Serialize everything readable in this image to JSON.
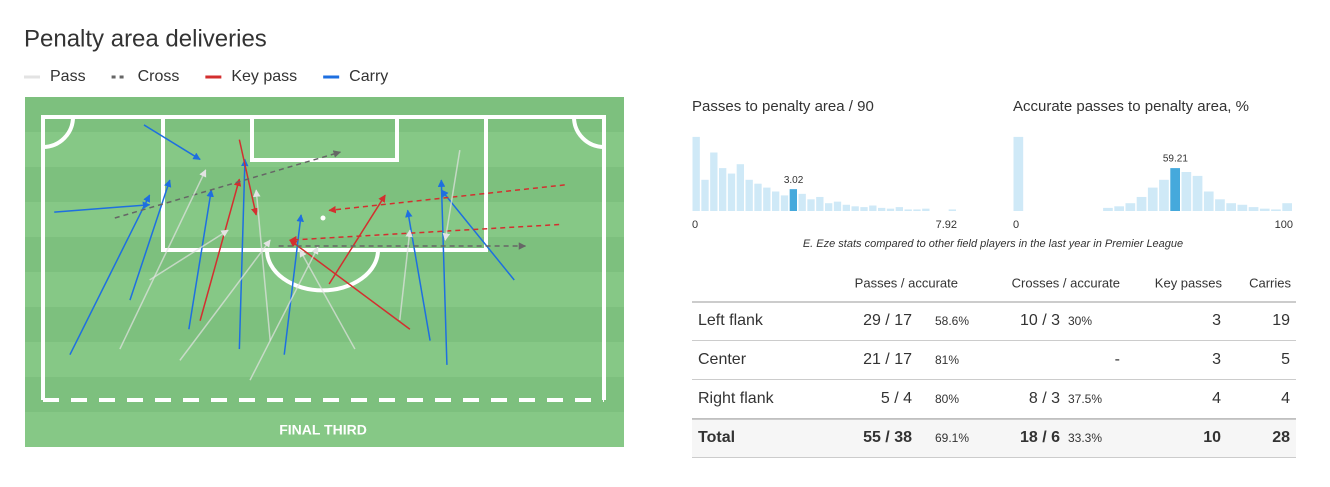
{
  "header": {
    "title": "Penalty area deliveries"
  },
  "legend": [
    {
      "name": "Pass",
      "color": "#e3e3e3",
      "dashed": false
    },
    {
      "name": "Cross",
      "color": "#666666",
      "dashed": true
    },
    {
      "name": "Key pass",
      "color": "#d32f2f",
      "dashed": false
    },
    {
      "name": "Carry",
      "color": "#1e6fe0",
      "dashed": false
    }
  ],
  "pitch": {
    "label": "FINAL THIRD",
    "deliveries": [
      {
        "kind": "Carry",
        "x": [
          4.8,
          19
        ],
        "y": [
          84,
          27.6
        ]
      },
      {
        "kind": "Carry",
        "x": [
          2,
          19
        ],
        "y": [
          33.6,
          31
        ]
      },
      {
        "kind": "Carry",
        "x": [
          18,
          28
        ],
        "y": [
          2.8,
          15
        ]
      },
      {
        "kind": "Carry",
        "x": [
          72,
          71
        ],
        "y": [
          87.6,
          22.3
        ]
      },
      {
        "kind": "Carry",
        "x": [
          84,
          71
        ],
        "y": [
          57.6,
          25.8
        ]
      },
      {
        "kind": "Carry",
        "x": [
          35,
          36
        ],
        "y": [
          82,
          15
        ]
      },
      {
        "kind": "Carry",
        "x": [
          43,
          46
        ],
        "y": [
          84,
          34.6
        ]
      },
      {
        "kind": "Carry",
        "x": [
          26,
          30
        ],
        "y": [
          75,
          25.8
        ]
      },
      {
        "kind": "Carry",
        "x": [
          69,
          65
        ],
        "y": [
          79,
          33
        ]
      },
      {
        "kind": "Carry",
        "x": [
          15.5,
          22.6
        ],
        "y": [
          64.7,
          22.3
        ]
      },
      {
        "kind": "Key pass",
        "x": [
          35,
          38
        ],
        "y": [
          8,
          34.6
        ]
      },
      {
        "kind": "Key pass",
        "x": [
          65.4,
          44
        ],
        "y": [
          75,
          43.5
        ]
      },
      {
        "kind": "Key pass",
        "x": [
          28,
          35
        ],
        "y": [
          72,
          22
        ]
      },
      {
        "kind": "Key pass",
        "x": [
          51,
          61
        ],
        "y": [
          59,
          27.6
        ]
      },
      {
        "kind": "Cross",
        "x": [
          12.8,
          53
        ],
        "y": [
          35.7,
          12.4
        ]
      },
      {
        "kind": "Cross",
        "x": [
          42,
          86
        ],
        "y": [
          45.6,
          45.6
        ]
      },
      {
        "kind": "Key pass",
        "x": [
          93,
          51
        ],
        "y": [
          24,
          33
        ]
      },
      {
        "kind": "Key pass",
        "x": [
          92,
          44
        ],
        "y": [
          38,
          43.5
        ]
      },
      {
        "kind": "Pass",
        "x": [
          13.7,
          29
        ],
        "y": [
          82,
          18.7
        ]
      },
      {
        "kind": "Pass",
        "x": [
          40.5,
          38
        ],
        "y": [
          79,
          25.8
        ]
      },
      {
        "kind": "Pass",
        "x": [
          63.6,
          65.4
        ],
        "y": [
          71.7,
          40
        ]
      },
      {
        "kind": "Pass",
        "x": [
          19,
          33
        ],
        "y": [
          57.6,
          40
        ]
      },
      {
        "kind": "Pass",
        "x": [
          55.6,
          45.8
        ],
        "y": [
          82,
          47
        ]
      },
      {
        "kind": "Pass",
        "x": [
          74.3,
          71.7
        ],
        "y": [
          11.7,
          43.5
        ]
      },
      {
        "kind": "Pass",
        "x": [
          36.9,
          49
        ],
        "y": [
          93,
          46
        ]
      },
      {
        "kind": "Pass",
        "x": [
          24.4,
          40.5
        ],
        "y": [
          86,
          43.5
        ]
      }
    ]
  },
  "chart_data": [
    {
      "type": "histogram",
      "title": "Passes to penalty area / 90",
      "color": "#cfe9f7",
      "highlight_color": "#45a9dc",
      "bins": [
        0,
        0.264,
        0.528,
        0.792,
        1.056,
        1.32,
        1.584,
        1.848,
        2.112,
        2.376,
        2.64,
        2.904,
        3.168,
        3.432,
        3.696,
        3.96,
        4.224,
        4.488,
        4.752,
        5.016,
        5.28,
        5.544,
        5.808,
        6.072,
        6.336,
        6.6,
        6.864,
        7.128,
        7.392,
        7.656,
        7.92
      ],
      "values": [
        95,
        40,
        75,
        55,
        48,
        60,
        40,
        35,
        30,
        25,
        20,
        28,
        22,
        15,
        18,
        10,
        12,
        8,
        6,
        5,
        7,
        4,
        3,
        5,
        2,
        2,
        3,
        0,
        0,
        2
      ],
      "ylim": [
        0,
        100
      ],
      "xlim": [
        0,
        7.92
      ],
      "xticks": [
        0,
        7.92
      ],
      "marker": 3.02
    },
    {
      "type": "histogram",
      "title": "Accurate passes to penalty area, %",
      "color": "#cfe9f7",
      "highlight_color": "#45a9dc",
      "bins": [
        0,
        4,
        8,
        12,
        16,
        20,
        24,
        28,
        32,
        36,
        40,
        44,
        48,
        52,
        56,
        60,
        64,
        68,
        72,
        76,
        80,
        84,
        88,
        92,
        96,
        100
      ],
      "values": [
        95,
        0,
        0,
        0,
        0,
        0,
        0,
        0,
        4,
        6,
        10,
        18,
        30,
        40,
        55,
        50,
        45,
        25,
        15,
        10,
        8,
        5,
        3,
        2,
        10
      ],
      "ylim": [
        0,
        100
      ],
      "xlim": [
        0,
        100
      ],
      "xticks": [
        0,
        100
      ],
      "marker": 59.21
    }
  ],
  "caption": "E. Eze stats compared to other field players in the last year in Premier League",
  "table": {
    "columns": [
      "Passes / accurate",
      "Crosses / accurate",
      "Key passes",
      "Carries"
    ],
    "rows": [
      {
        "label": "Left flank",
        "passes": "29 / 17",
        "passes_pct": "58.6%",
        "crosses": "10 / 3",
        "crosses_pct": "30%",
        "key_passes": "3",
        "carries": "19"
      },
      {
        "label": "Center",
        "passes": "21 / 17",
        "passes_pct": "81%",
        "crosses": "-",
        "key_passes": "3",
        "carries": "5"
      },
      {
        "label": "Right flank",
        "passes": "5 / 4",
        "passes_pct": "80%",
        "crosses": "8 / 3",
        "crosses_pct": "37.5%",
        "key_passes": "4",
        "carries": "4"
      },
      {
        "label": "Total",
        "passes": "55 / 38",
        "passes_pct": "69.1%",
        "crosses": "18 / 6",
        "crosses_pct": "33.3%",
        "key_passes": "10",
        "carries": "28"
      }
    ]
  }
}
